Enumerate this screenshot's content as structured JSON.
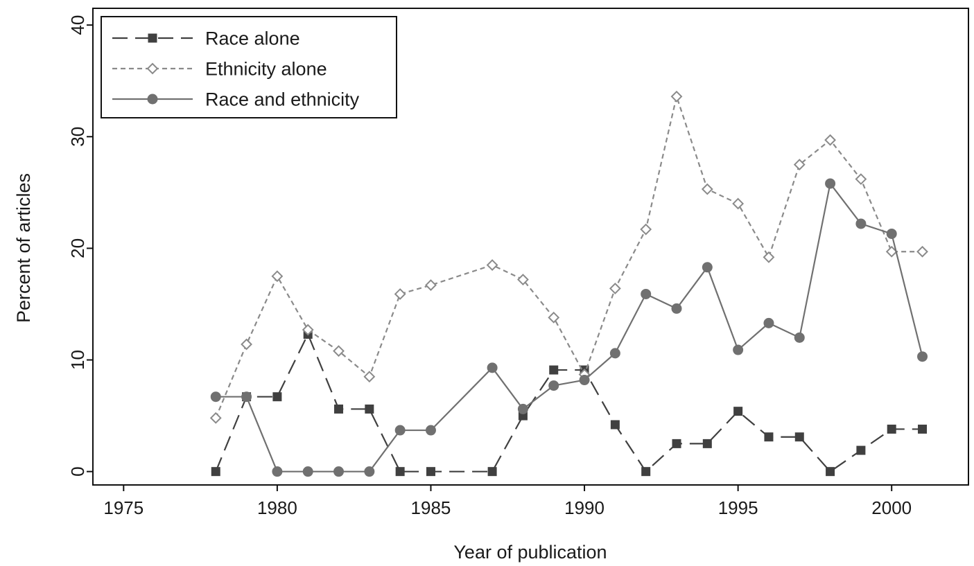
{
  "chart_data": {
    "type": "line",
    "xlabel": "Year of publication",
    "ylabel": "Percent of articles",
    "xlim": [
      1974,
      2002.5
    ],
    "ylim": [
      -1.2,
      41.5
    ],
    "x_ticks": [
      1975,
      1980,
      1985,
      1990,
      1995,
      2000
    ],
    "y_ticks": [
      0,
      10,
      20,
      30,
      40
    ],
    "grid": false,
    "legend_position": "top-left",
    "series": [
      {
        "name": "Race alone",
        "line": "long-dash",
        "marker": "filled-square",
        "color": "#404040",
        "x": [
          1978,
          1979,
          1980,
          1981,
          1982,
          1983,
          1984,
          1985,
          1987,
          1988,
          1989,
          1990,
          1991,
          1992,
          1993,
          1994,
          1995,
          1996,
          1997,
          1998,
          1999,
          2000,
          2001
        ],
        "values": [
          0,
          6.7,
          6.7,
          12.3,
          5.6,
          5.6,
          0,
          0,
          0,
          5.0,
          9.1,
          9.1,
          4.2,
          0,
          2.5,
          2.5,
          5.4,
          3.1,
          3.1,
          0,
          1.9,
          3.8,
          3.8
        ]
      },
      {
        "name": "Ethnicity alone",
        "line": "short-dash",
        "marker": "hollow-diamond",
        "color": "#8a8a8a",
        "x": [
          1978,
          1979,
          1980,
          1981,
          1982,
          1983,
          1984,
          1985,
          1987,
          1988,
          1989,
          1990,
          1991,
          1992,
          1993,
          1994,
          1995,
          1996,
          1997,
          1998,
          1999,
          2000,
          2001
        ],
        "values": [
          4.8,
          11.4,
          17.5,
          12.7,
          10.8,
          8.5,
          15.9,
          16.7,
          18.5,
          17.2,
          13.8,
          8.7,
          16.4,
          21.7,
          33.6,
          25.3,
          24.0,
          19.2,
          27.5,
          29.7,
          26.2,
          19.7,
          19.7
        ]
      },
      {
        "name": "Race and ethnicity",
        "line": "solid",
        "marker": "filled-circle",
        "color": "#707070",
        "x": [
          1978,
          1979,
          1980,
          1981,
          1982,
          1983,
          1984,
          1985,
          1987,
          1988,
          1989,
          1990,
          1991,
          1992,
          1993,
          1994,
          1995,
          1996,
          1997,
          1998,
          1999,
          2000,
          2001
        ],
        "values": [
          6.7,
          6.7,
          0,
          0,
          0,
          0,
          3.7,
          3.7,
          9.3,
          5.6,
          7.7,
          8.2,
          10.6,
          15.9,
          14.6,
          18.3,
          10.9,
          13.3,
          12.0,
          25.8,
          22.2,
          21.3,
          10.3
        ]
      }
    ]
  }
}
